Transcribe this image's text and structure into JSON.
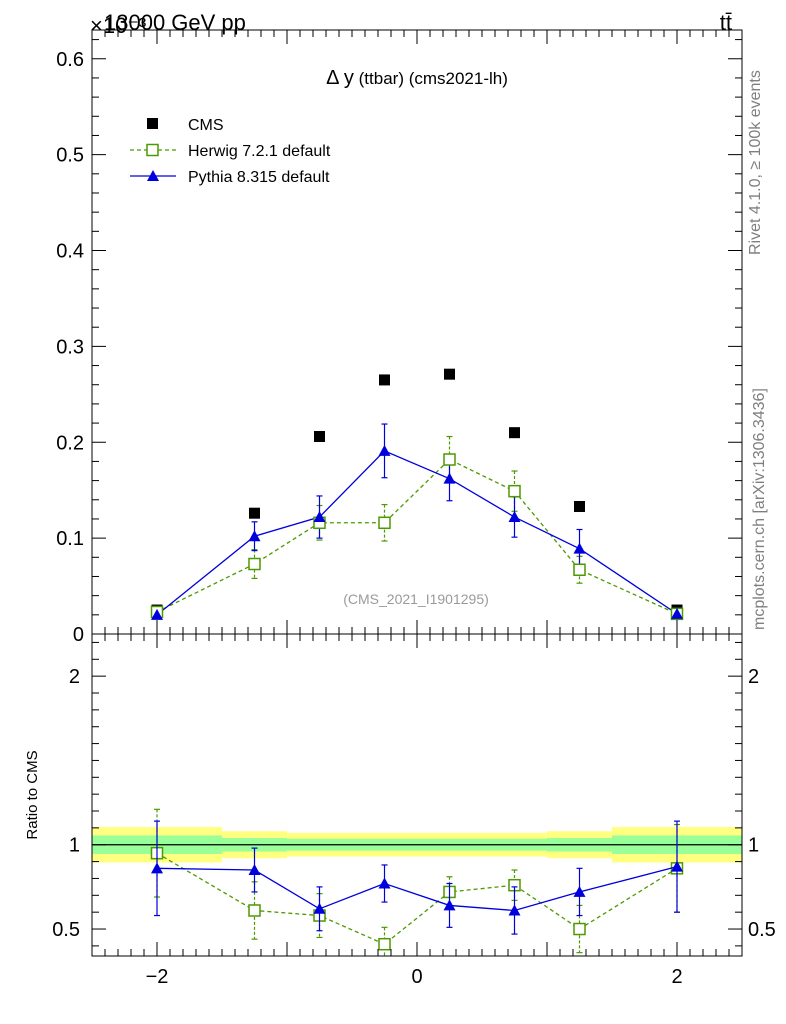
{
  "header": {
    "left": "13000 GeV pp",
    "right": "tt̄",
    "exponent": "×10⁻³"
  },
  "side": {
    "rivet": "Rivet 4.1.0, ≥ 100k events",
    "mcplots": "mcplots.cern.ch [arXiv:1306.3436]"
  },
  "watermark": "(CMS_2021_I1901295)",
  "chart_data": [
    {
      "type": "scatter",
      "title": "Δ y(ttbar) (cms2021-lh)",
      "title_delta": "Δ y",
      "title_rest": "(ttbar) (cms2021-lh)",
      "xlim": [
        -2.5,
        2.5
      ],
      "ylim": [
        0,
        0.63
      ],
      "ylabel": "",
      "y_scale_note": "×10⁻³",
      "x_ticks": [
        -2,
        0,
        2
      ],
      "y_ticks": [
        0,
        0.1,
        0.2,
        0.3,
        0.4,
        0.5,
        0.6
      ],
      "y_tick_labels": [
        "0",
        "0.1",
        "0.2",
        "0.3",
        "0.4",
        "0.5",
        "0.6"
      ],
      "x": [
        -2.0,
        -1.25,
        -0.75,
        -0.25,
        0.25,
        0.75,
        1.25,
        2.0
      ],
      "legend": [
        "CMS",
        "Herwig 7.2.1 default",
        "Pythia 8.315 default"
      ],
      "series": [
        {
          "name": "CMS",
          "color": "#000000",
          "marker": "square",
          "values": [
            0.025,
            0.126,
            0.206,
            0.265,
            0.271,
            0.21,
            0.133,
            0.025
          ]
        },
        {
          "name": "Herwig 7.2.1 default",
          "color": "#4d9900",
          "marker": "open-square",
          "line": "dashed",
          "values": [
            0.023,
            0.073,
            0.116,
            0.116,
            0.182,
            0.149,
            0.067,
            0.021
          ],
          "errors": [
            0.003,
            0.015,
            0.018,
            0.019,
            0.024,
            0.021,
            0.014,
            0.003
          ]
        },
        {
          "name": "Pythia 8.315 default",
          "color": "#0000dd",
          "marker": "triangle",
          "line": "solid",
          "values": [
            0.02,
            0.102,
            0.122,
            0.191,
            0.162,
            0.122,
            0.089,
            0.021
          ],
          "errors": [
            0.003,
            0.015,
            0.022,
            0.028,
            0.023,
            0.021,
            0.02,
            0.003
          ]
        }
      ]
    },
    {
      "type": "scatter",
      "title": "",
      "ylabel": "Ratio to CMS",
      "xlim": [
        -2.5,
        2.5
      ],
      "ylim": [
        0.34,
        2.25
      ],
      "x_ticks": [
        -2,
        0,
        2
      ],
      "x_tick_labels": [
        "−2",
        "0",
        "2"
      ],
      "y_ticks": [
        0.5,
        1,
        2
      ],
      "y_tick_labels": [
        "0.5",
        "1",
        "2"
      ],
      "x": [
        -2.0,
        -1.25,
        -0.75,
        -0.25,
        0.25,
        0.75,
        1.25,
        2.0
      ],
      "bands": {
        "edges": [
          -2.5,
          -1.5,
          -1.0,
          -0.5,
          0.0,
          0.5,
          1.0,
          1.5,
          2.5
        ],
        "inner": [
          0.055,
          0.04,
          0.035,
          0.035,
          0.035,
          0.035,
          0.04,
          0.055
        ],
        "outer": [
          0.105,
          0.08,
          0.07,
          0.07,
          0.07,
          0.07,
          0.08,
          0.105
        ],
        "inner_color": "#99ff99",
        "outer_color": "#ffff80"
      },
      "series": [
        {
          "name": "Herwig 7.2.1 default",
          "color": "#4d9900",
          "values": [
            0.95,
            0.61,
            0.58,
            0.41,
            0.72,
            0.76,
            0.5,
            0.86
          ],
          "errors": [
            0.26,
            0.17,
            0.13,
            0.1,
            0.09,
            0.09,
            0.14,
            0.26
          ]
        },
        {
          "name": "Pythia 8.315 default",
          "color": "#0000dd",
          "values": [
            0.86,
            0.85,
            0.62,
            0.77,
            0.64,
            0.61,
            0.72,
            0.87
          ],
          "errors": [
            0.28,
            0.13,
            0.13,
            0.11,
            0.13,
            0.14,
            0.14,
            0.27
          ]
        }
      ]
    }
  ]
}
